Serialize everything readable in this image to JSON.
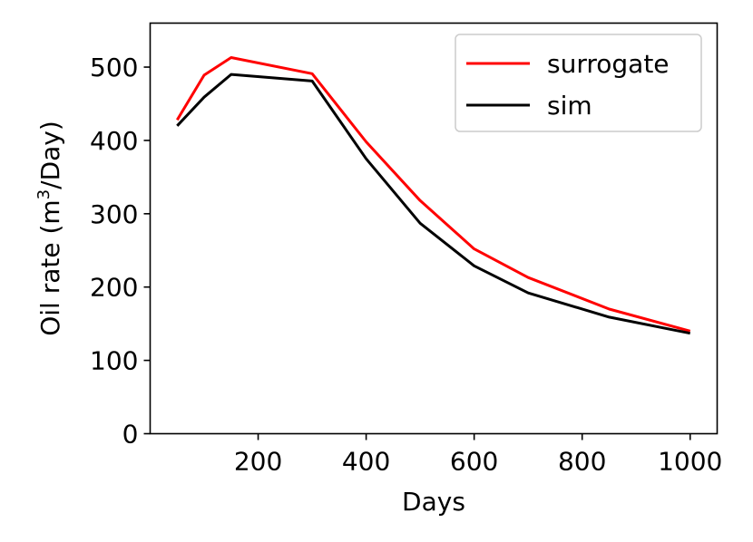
{
  "chart_data": {
    "type": "line",
    "xlabel": "Days",
    "ylabel_main": "Oil rate (m",
    "ylabel_sup": "3",
    "ylabel_end": "/Day)",
    "xlim": [
      0,
      1050
    ],
    "ylim": [
      0,
      560
    ],
    "xticks": [
      200,
      400,
      600,
      800,
      1000
    ],
    "yticks": [
      0,
      100,
      200,
      300,
      400,
      500
    ],
    "xtick_labels": [
      "200",
      "400",
      "600",
      "800",
      "1000"
    ],
    "ytick_labels": [
      "0",
      "100",
      "200",
      "300",
      "400",
      "500"
    ],
    "grid": false,
    "legend_position": "top-right",
    "series": [
      {
        "name": "surrogate",
        "color": "#ff0000",
        "x": [
          50,
          100,
          150,
          300,
          400,
          500,
          600,
          700,
          850,
          1000
        ],
        "y": [
          428,
          489,
          513,
          491,
          398,
          318,
          252,
          213,
          170,
          140
        ]
      },
      {
        "name": "sim",
        "color": "#000000",
        "x": [
          50,
          100,
          150,
          300,
          400,
          500,
          600,
          700,
          850,
          1000
        ],
        "y": [
          420,
          459,
          490,
          481,
          375,
          287,
          229,
          192,
          159,
          137
        ]
      }
    ]
  }
}
